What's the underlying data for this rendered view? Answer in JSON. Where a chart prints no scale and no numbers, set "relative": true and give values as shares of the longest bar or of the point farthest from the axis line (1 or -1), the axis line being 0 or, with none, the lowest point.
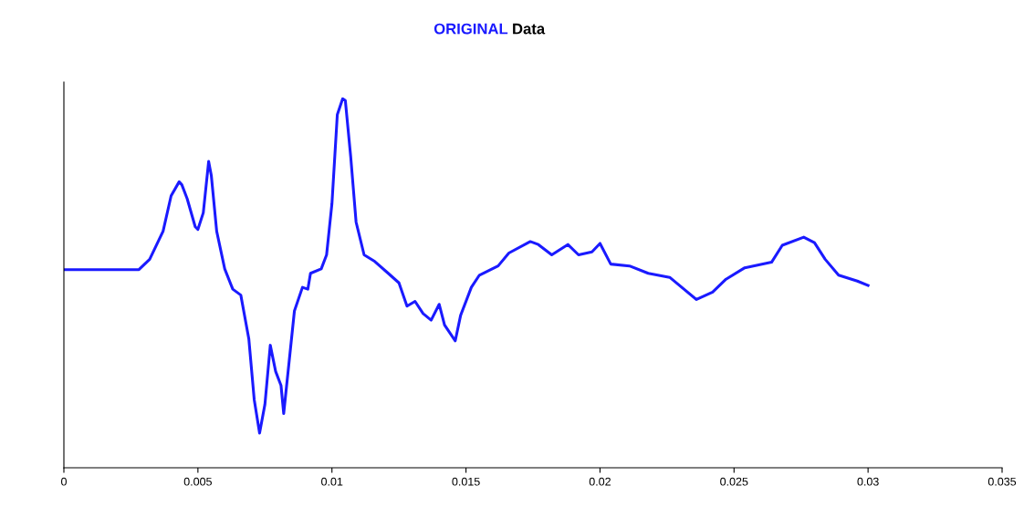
{
  "chart_data": {
    "type": "line",
    "title": "ORIGINAL Data",
    "relative": true,
    "tick_labels": "x",
    "grid": false,
    "legend": false,
    "xlim": [
      0,
      0.035
    ],
    "xticks": [
      0,
      0.005,
      0.01,
      0.015,
      0.02,
      0.025,
      0.03,
      0.035
    ],
    "series": [
      {
        "color": "#1a1aff",
        "x": [
          0,
          0.0028,
          0.0032,
          0.0037,
          0.004,
          0.0043,
          0.0044,
          0.0046,
          0.0049,
          0.005,
          0.0052,
          0.0054,
          0.0055,
          0.0057,
          0.006,
          0.0063,
          0.0066,
          0.0069,
          0.0071,
          0.0073,
          0.0075,
          0.0077,
          0.0079,
          0.0081,
          0.0082,
          0.0084,
          0.0086,
          0.0089,
          0.0091,
          0.0092,
          0.0096,
          0.0098,
          0.01,
          0.0102,
          0.0104,
          0.0105,
          0.0107,
          0.0109,
          0.0112,
          0.0116,
          0.0121,
          0.0125,
          0.0128,
          0.0131,
          0.0134,
          0.0137,
          0.014,
          0.0142,
          0.0146,
          0.0148,
          0.0152,
          0.0155,
          0.0162,
          0.0166,
          0.0174,
          0.0177,
          0.0182,
          0.0188,
          0.0192,
          0.0197,
          0.02,
          0.0204,
          0.0211,
          0.0218,
          0.0226,
          0.0236,
          0.0242,
          0.0247,
          0.0254,
          0.0264,
          0.0268,
          0.0276,
          0.028,
          0.0284,
          0.0289,
          0.0296,
          0.03
        ],
        "values": [
          0.537,
          0.537,
          0.565,
          0.641,
          0.737,
          0.775,
          0.767,
          0.729,
          0.653,
          0.646,
          0.691,
          0.83,
          0.792,
          0.641,
          0.539,
          0.484,
          0.468,
          0.349,
          0.185,
          0.094,
          0.172,
          0.332,
          0.261,
          0.223,
          0.147,
          0.286,
          0.425,
          0.489,
          0.484,
          0.527,
          0.539,
          0.577,
          0.716,
          0.957,
          1.0,
          0.995,
          0.843,
          0.666,
          0.577,
          0.559,
          0.527,
          0.501,
          0.438,
          0.451,
          0.418,
          0.4,
          0.443,
          0.387,
          0.344,
          0.413,
          0.489,
          0.522,
          0.547,
          0.582,
          0.613,
          0.605,
          0.577,
          0.605,
          0.577,
          0.585,
          0.608,
          0.552,
          0.547,
          0.527,
          0.516,
          0.456,
          0.476,
          0.511,
          0.542,
          0.557,
          0.603,
          0.625,
          0.61,
          0.565,
          0.522,
          0.506,
          0.494
        ]
      }
    ]
  }
}
